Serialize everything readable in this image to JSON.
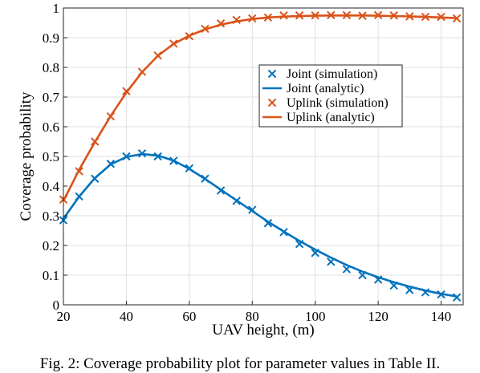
{
  "caption": "Fig. 2: Coverage probability plot for parameter values in Table II.",
  "chart_data": {
    "type": "line",
    "title": "",
    "xlabel": "UAV height, (m)",
    "ylabel": "Coverage probability",
    "xlim": [
      20,
      147
    ],
    "ylim": [
      0,
      1
    ],
    "xticks": [
      20,
      40,
      60,
      80,
      100,
      120,
      140
    ],
    "yticks": [
      0,
      0.1,
      0.2,
      0.3,
      0.4,
      0.5,
      0.6,
      0.7,
      0.8,
      0.9,
      1
    ],
    "xtick_labels": [
      "20",
      "40",
      "60",
      "80",
      "100",
      "120",
      "140"
    ],
    "ytick_labels": [
      "0",
      "0.1",
      "0.2",
      "0.3",
      "0.4",
      "0.5",
      "0.6",
      "0.7",
      "0.8",
      "0.9",
      "1"
    ],
    "grid": true,
    "legend_position": "upper-right-center",
    "x": [
      20,
      25,
      30,
      35,
      40,
      45,
      50,
      55,
      60,
      65,
      70,
      75,
      80,
      85,
      90,
      95,
      100,
      105,
      110,
      115,
      120,
      125,
      130,
      135,
      140,
      145
    ],
    "series": [
      {
        "name": "Joint (simulation)",
        "kind": "markers",
        "marker": "x",
        "color": "#0072BD",
        "values": [
          0.285,
          0.365,
          0.425,
          0.475,
          0.5,
          0.51,
          0.5,
          0.485,
          0.46,
          0.425,
          0.385,
          0.35,
          0.32,
          0.275,
          0.245,
          0.205,
          0.175,
          0.145,
          0.12,
          0.1,
          0.085,
          0.065,
          0.05,
          0.042,
          0.035,
          0.025
        ]
      },
      {
        "name": "Joint (analytic)",
        "kind": "line",
        "color": "#0072BD",
        "values": [
          0.29,
          0.365,
          0.427,
          0.473,
          0.498,
          0.508,
          0.503,
          0.486,
          0.458,
          0.424,
          0.388,
          0.352,
          0.316,
          0.28,
          0.247,
          0.215,
          0.186,
          0.159,
          0.134,
          0.112,
          0.093,
          0.076,
          0.061,
          0.048,
          0.037,
          0.028
        ]
      },
      {
        "name": "Uplink (simulation)",
        "kind": "markers",
        "marker": "x",
        "color": "#D95319",
        "values": [
          0.355,
          0.45,
          0.55,
          0.635,
          0.72,
          0.785,
          0.84,
          0.88,
          0.905,
          0.93,
          0.948,
          0.96,
          0.965,
          0.968,
          0.975,
          0.975,
          0.975,
          0.976,
          0.976,
          0.974,
          0.976,
          0.975,
          0.972,
          0.97,
          0.97,
          0.965
        ]
      },
      {
        "name": "Uplink (analytic)",
        "kind": "line",
        "color": "#D95319",
        "values": [
          0.35,
          0.455,
          0.548,
          0.636,
          0.715,
          0.784,
          0.839,
          0.879,
          0.907,
          0.928,
          0.944,
          0.955,
          0.963,
          0.968,
          0.971,
          0.973,
          0.974,
          0.975,
          0.975,
          0.975,
          0.974,
          0.973,
          0.972,
          0.97,
          0.968,
          0.966
        ]
      }
    ]
  }
}
